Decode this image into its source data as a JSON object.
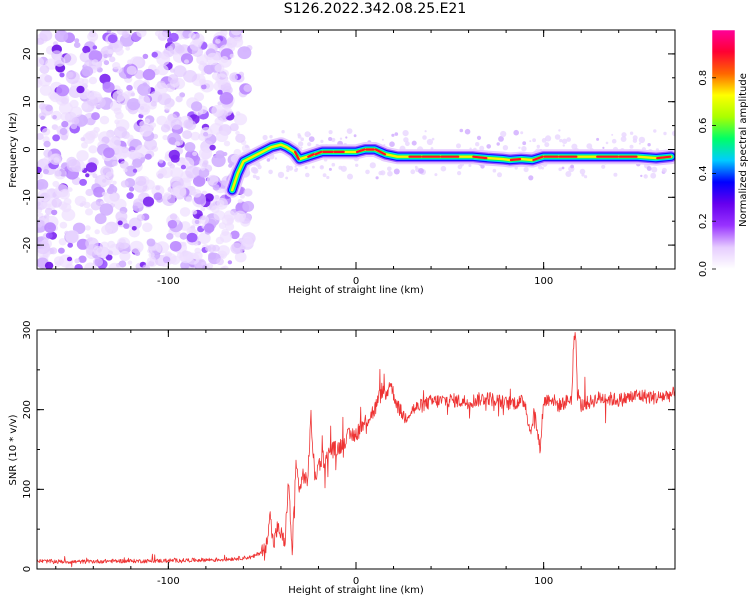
{
  "title": "S126.2022.342.08.25.E21",
  "colors": {
    "snr_line": "#ee3333",
    "axis": "#000000",
    "colormap": [
      "#ffffff",
      "#e6ccff",
      "#9933ff",
      "#6600ee",
      "#0000ff",
      "#00ccff",
      "#00ff66",
      "#aaff00",
      "#ffff00",
      "#ff6600",
      "#ff0033",
      "#ff0099"
    ]
  },
  "chart_data": [
    {
      "type": "heatmap",
      "title": "",
      "xlabel": "Height of straight line (km)",
      "ylabel": "Frequency (Hz)",
      "xlim": [
        -170,
        170
      ],
      "ylim": [
        -25,
        25
      ],
      "x_ticks": [
        -100,
        0,
        100
      ],
      "y_ticks": [
        -20,
        -10,
        0,
        10,
        20
      ],
      "colorbar": {
        "label": "Normalized spectral amplitude",
        "range": [
          0,
          1
        ],
        "ticks": [
          0.0,
          0.2,
          0.4,
          0.6,
          0.8
        ],
        "tick_labels": [
          "0.0",
          "0.2",
          "0.4",
          "0.6",
          "0.8"
        ]
      },
      "noise_region_x": [
        -170,
        -60
      ],
      "ridge": {
        "x": [
          -66,
          -63,
          -60,
          -55,
          -50,
          -45,
          -40,
          -37,
          -33,
          -30,
          -26,
          -22,
          -18,
          -12,
          -6,
          0,
          5,
          10,
          16,
          22,
          28,
          35,
          45,
          55,
          62,
          70,
          78,
          82,
          88,
          94,
          100,
          108,
          118,
          128,
          140,
          150,
          160,
          168
        ],
        "y": [
          -8.5,
          -5,
          -2.5,
          -1.5,
          -0.5,
          0.5,
          1,
          0.5,
          -0.5,
          -2,
          -1.5,
          -1,
          -0.5,
          -0.5,
          -0.5,
          -0.5,
          0,
          0,
          -1,
          -1.5,
          -1.5,
          -1.5,
          -1.5,
          -1.5,
          -1.5,
          -1.8,
          -2,
          -2.2,
          -2,
          -2.2,
          -1.5,
          -1.5,
          -1.5,
          -1.5,
          -1.5,
          -1.5,
          -1.8,
          -1.5
        ]
      }
    },
    {
      "type": "line",
      "title": "",
      "xlabel": "Height of straight line (km)",
      "ylabel": "SNR (10 * v/v)",
      "xlim": [
        -170,
        170
      ],
      "ylim": [
        0,
        300
      ],
      "x_ticks": [
        -100,
        0,
        100
      ],
      "y_ticks": [
        0,
        100,
        200,
        300
      ],
      "x": [
        -170,
        -150,
        -130,
        -110,
        -90,
        -70,
        -55,
        -48,
        -46,
        -44,
        -42,
        -40,
        -38,
        -36,
        -34,
        -32,
        -30,
        -28,
        -26,
        -24,
        -22,
        -20,
        -18,
        -16,
        -14,
        -10,
        -5,
        0,
        5,
        10,
        14,
        16,
        18,
        20,
        22,
        26,
        30,
        40,
        50,
        60,
        70,
        80,
        90,
        93,
        95,
        98,
        100,
        104,
        108,
        112,
        115,
        116,
        117,
        118,
        120,
        125,
        130,
        140,
        150,
        160,
        170
      ],
      "y": [
        10,
        9,
        10,
        10,
        11,
        12,
        15,
        25,
        70,
        30,
        50,
        45,
        30,
        110,
        20,
        130,
        100,
        120,
        105,
        190,
        115,
        130,
        140,
        135,
        150,
        150,
        165,
        170,
        185,
        200,
        225,
        215,
        235,
        220,
        205,
        190,
        200,
        210,
        212,
        210,
        215,
        208,
        210,
        170,
        200,
        150,
        210,
        215,
        205,
        210,
        215,
        280,
        300,
        220,
        205,
        210,
        215,
        212,
        218,
        215,
        220
      ]
    }
  ]
}
